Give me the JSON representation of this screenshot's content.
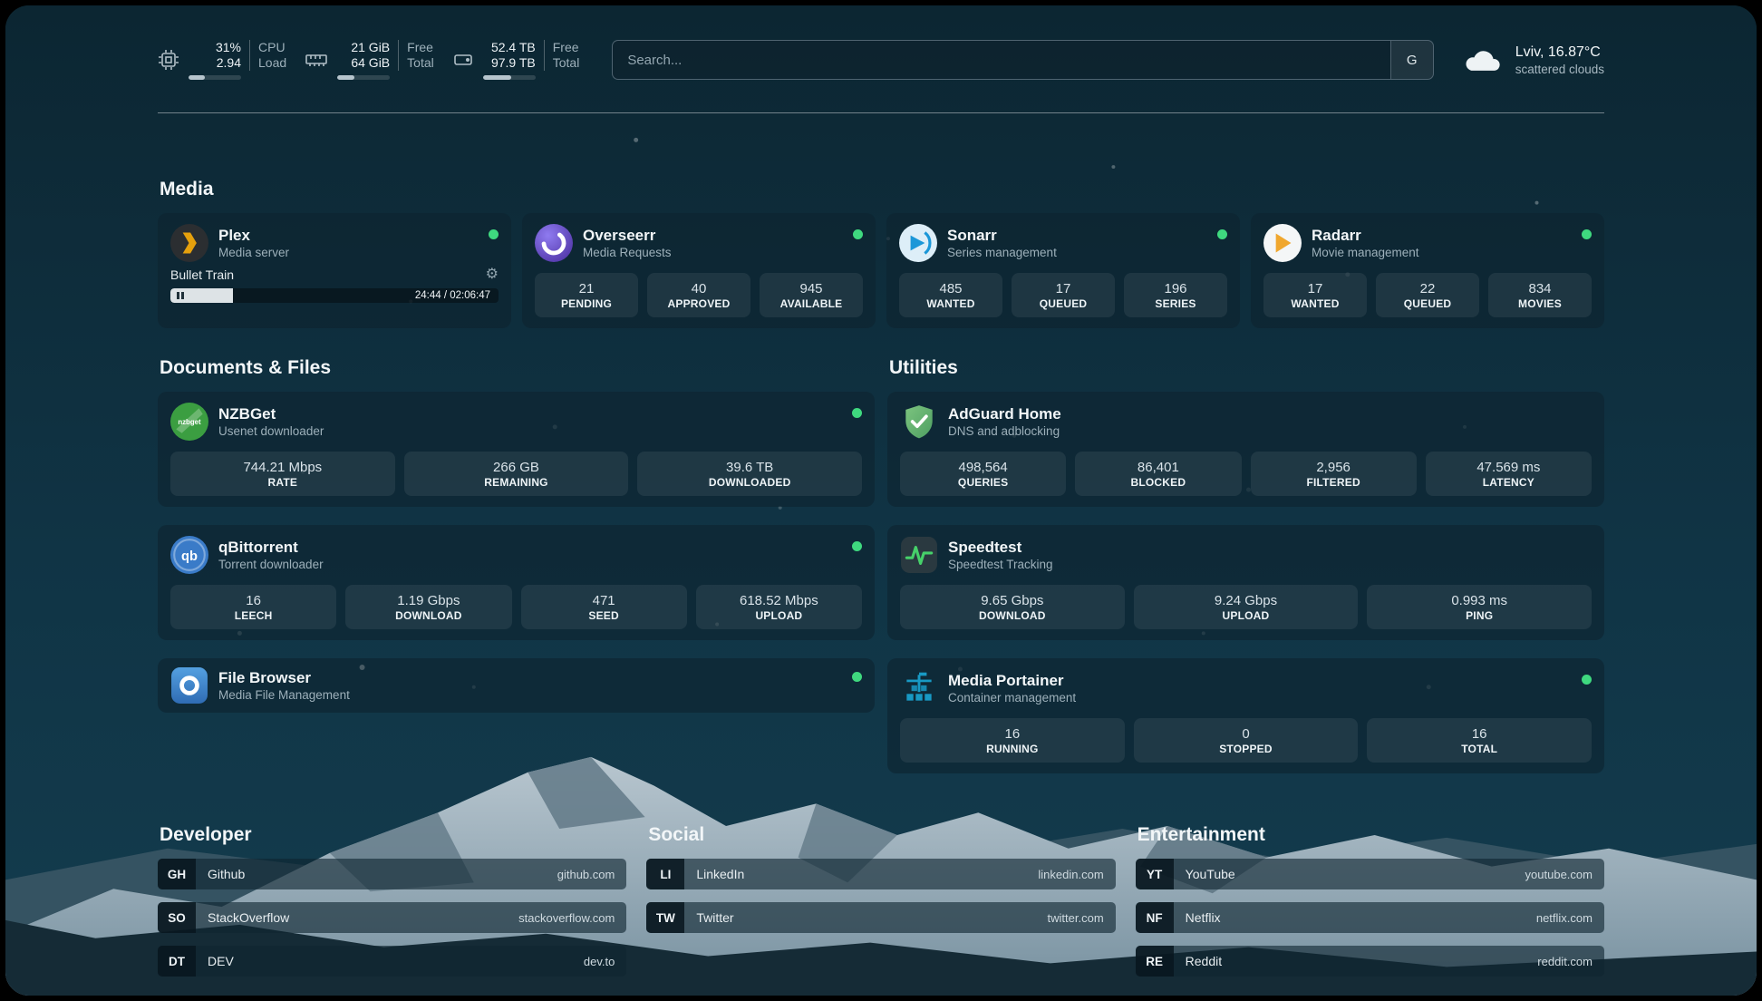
{
  "theme": {
    "status_online": "#3fd97f",
    "accent_plex": "#e5a00d",
    "accent_sonarr": "#1b97d8",
    "accent_radarr": "#f0a72e",
    "accent_adguard": "#5fae6e",
    "accent_speedtest": "#46d16a",
    "background_sky": "#0d2a37"
  },
  "topbar": {
    "cpu": {
      "value": "31%",
      "load": "2.94",
      "labels": [
        "CPU",
        "Load"
      ],
      "progress_pct": 31
    },
    "ram": {
      "free": "21 GiB",
      "total": "64 GiB",
      "labels": [
        "Free",
        "Total"
      ],
      "progress_pct": 33
    },
    "disk": {
      "free": "52.4 TB",
      "total": "97.9 TB",
      "labels": [
        "Free",
        "Total"
      ],
      "progress_pct": 54
    },
    "search": {
      "placeholder": "Search...",
      "engine_label": "G"
    },
    "weather": {
      "location": "Lviv, 16.87°C",
      "condition": "scattered clouds"
    }
  },
  "media": {
    "title": "Media",
    "plex": {
      "name": "Plex",
      "subtitle": "Media server",
      "now_playing": "Bullet Train",
      "time": "24:44 / 02:06:47",
      "progress_pct": 19
    },
    "overseerr": {
      "name": "Overseerr",
      "subtitle": "Media Requests",
      "stats": [
        {
          "value": "21",
          "label": "PENDING"
        },
        {
          "value": "40",
          "label": "APPROVED"
        },
        {
          "value": "945",
          "label": "AVAILABLE"
        }
      ]
    },
    "sonarr": {
      "name": "Sonarr",
      "subtitle": "Series management",
      "stats": [
        {
          "value": "485",
          "label": "WANTED"
        },
        {
          "value": "17",
          "label": "QUEUED"
        },
        {
          "value": "196",
          "label": "SERIES"
        }
      ]
    },
    "radarr": {
      "name": "Radarr",
      "subtitle": "Movie management",
      "stats": [
        {
          "value": "17",
          "label": "WANTED"
        },
        {
          "value": "22",
          "label": "QUEUED"
        },
        {
          "value": "834",
          "label": "MOVIES"
        }
      ]
    }
  },
  "documents": {
    "title": "Documents & Files",
    "nzbget": {
      "name": "NZBGet",
      "subtitle": "Usenet downloader",
      "icon_text": "nzbget",
      "stats": [
        {
          "value": "744.21 Mbps",
          "label": "RATE"
        },
        {
          "value": "266 GB",
          "label": "REMAINING"
        },
        {
          "value": "39.6 TB",
          "label": "DOWNLOADED"
        }
      ]
    },
    "qbittorrent": {
      "name": "qBittorrent",
      "subtitle": "Torrent downloader",
      "icon_text": "qb",
      "stats": [
        {
          "value": "16",
          "label": "LEECH"
        },
        {
          "value": "1.19 Gbps",
          "label": "DOWNLOAD"
        },
        {
          "value": "471",
          "label": "SEED"
        },
        {
          "value": "618.52 Mbps",
          "label": "UPLOAD"
        }
      ]
    },
    "filebrowser": {
      "name": "File Browser",
      "subtitle": "Media File Management"
    }
  },
  "utilities": {
    "title": "Utilities",
    "adguard": {
      "name": "AdGuard Home",
      "subtitle": "DNS and adblocking",
      "stats": [
        {
          "value": "498,564",
          "label": "QUERIES"
        },
        {
          "value": "86,401",
          "label": "BLOCKED"
        },
        {
          "value": "2,956",
          "label": "FILTERED"
        },
        {
          "value": "47.569 ms",
          "label": "LATENCY"
        }
      ]
    },
    "speedtest": {
      "name": "Speedtest",
      "subtitle": "Speedtest Tracking",
      "stats": [
        {
          "value": "9.65 Gbps",
          "label": "DOWNLOAD"
        },
        {
          "value": "9.24 Gbps",
          "label": "UPLOAD"
        },
        {
          "value": "0.993 ms",
          "label": "PING"
        }
      ]
    },
    "portainer": {
      "name": "Media Portainer",
      "subtitle": "Container management",
      "stats": [
        {
          "value": "16",
          "label": "RUNNING"
        },
        {
          "value": "0",
          "label": "STOPPED"
        },
        {
          "value": "16",
          "label": "TOTAL"
        }
      ]
    }
  },
  "bookmarks": {
    "developer": {
      "title": "Developer",
      "items": [
        {
          "abbr": "GH",
          "name": "Github",
          "url": "github.com"
        },
        {
          "abbr": "SO",
          "name": "StackOverflow",
          "url": "stackoverflow.com"
        },
        {
          "abbr": "DT",
          "name": "DEV",
          "url": "dev.to"
        }
      ]
    },
    "social": {
      "title": "Social",
      "items": [
        {
          "abbr": "LI",
          "name": "LinkedIn",
          "url": "linkedin.com"
        },
        {
          "abbr": "TW",
          "name": "Twitter",
          "url": "twitter.com"
        }
      ]
    },
    "entertainment": {
      "title": "Entertainment",
      "items": [
        {
          "abbr": "YT",
          "name": "YouTube",
          "url": "youtube.com"
        },
        {
          "abbr": "NF",
          "name": "Netflix",
          "url": "netflix.com"
        },
        {
          "abbr": "RE",
          "name": "Reddit",
          "url": "reddit.com"
        }
      ]
    }
  }
}
